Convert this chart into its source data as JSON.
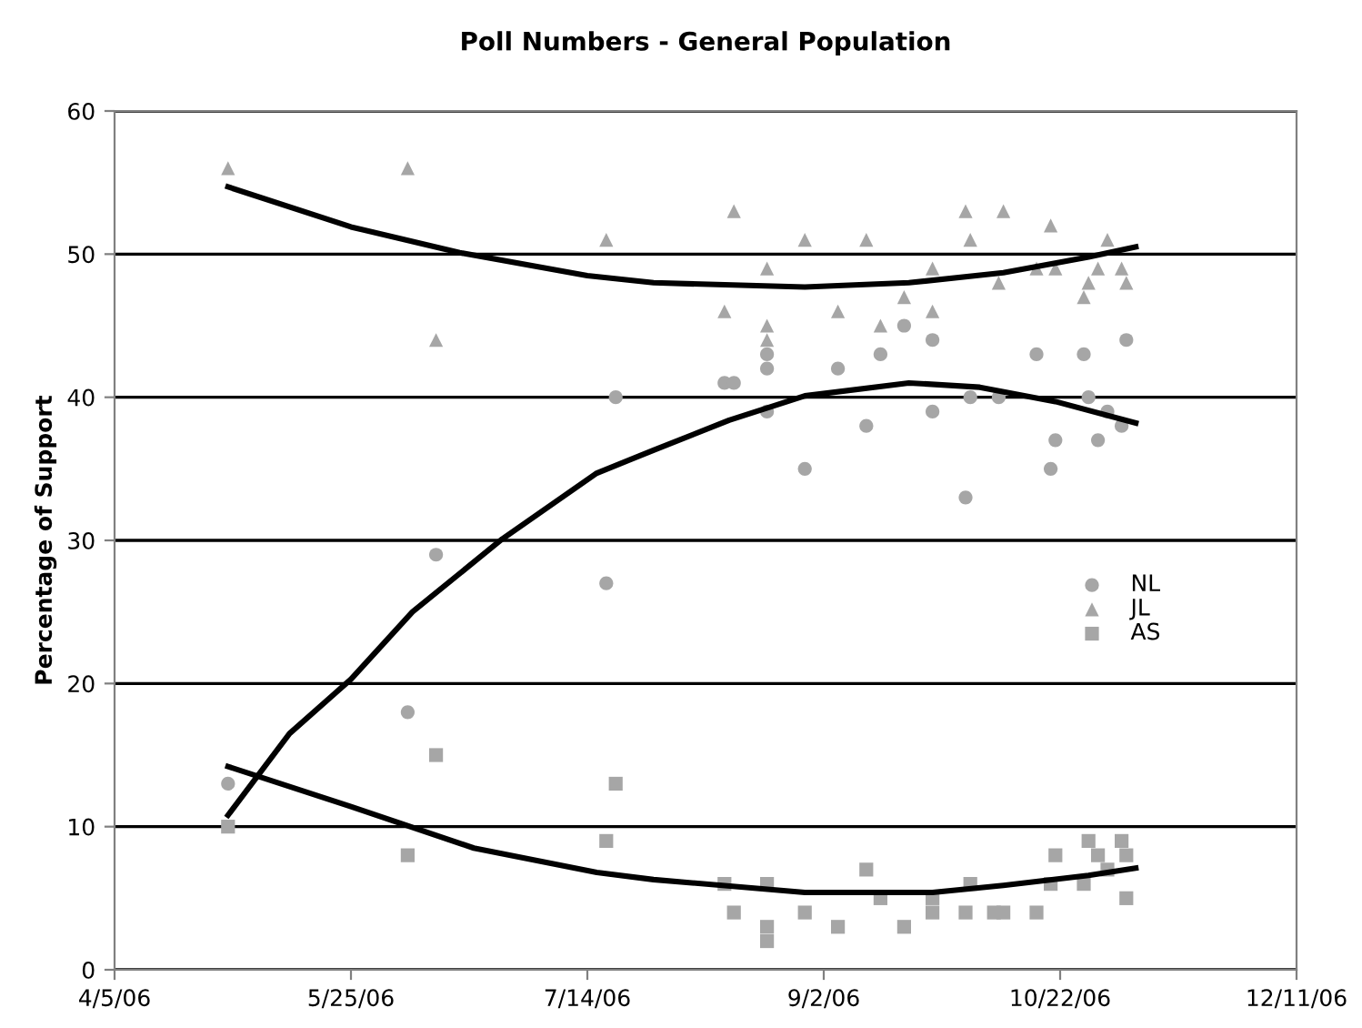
{
  "chart_data": {
    "type": "scatter",
    "title": "Poll Numbers - General Population",
    "ylabel": "Percentage of Support",
    "xlim": [
      "2006-04-05",
      "2006-12-11"
    ],
    "xticks": [
      {
        "value": "2006-04-05",
        "label": "4/5/06"
      },
      {
        "value": "2006-05-25",
        "label": "5/25/06"
      },
      {
        "value": "2006-07-14",
        "label": "7/14/06"
      },
      {
        "value": "2006-09-02",
        "label": "9/2/06"
      },
      {
        "value": "2006-10-22",
        "label": "10/22/06"
      },
      {
        "value": "2006-12-11",
        "label": "12/11/06"
      }
    ],
    "ylim": [
      0,
      60
    ],
    "yticks": [
      0,
      10,
      20,
      30,
      40,
      50,
      60
    ],
    "grid": "y",
    "legend": "right",
    "series": [
      {
        "name": "NL",
        "marker": "circle",
        "color": "#a6a6a6",
        "x": [
          "2006-04-29",
          "2006-06-06",
          "2006-06-12",
          "2006-07-18",
          "2006-07-20",
          "2006-08-12",
          "2006-08-14",
          "2006-08-21",
          "2006-08-21",
          "2006-08-21",
          "2006-08-29",
          "2006-09-05",
          "2006-09-11",
          "2006-09-14",
          "2006-09-19",
          "2006-09-25",
          "2006-09-25",
          "2006-10-02",
          "2006-10-03",
          "2006-10-09",
          "2006-10-17",
          "2006-10-20",
          "2006-10-21",
          "2006-10-27",
          "2006-10-28",
          "2006-10-30",
          "2006-11-01",
          "2006-11-04",
          "2006-11-05"
        ],
        "values": [
          13,
          18,
          29,
          27,
          40,
          41,
          41,
          43,
          42,
          39,
          35,
          42,
          38,
          43,
          45,
          44,
          39,
          33,
          40,
          40,
          43,
          35,
          37,
          43,
          40,
          37,
          39,
          38,
          44
        ]
      },
      {
        "name": "JL",
        "marker": "triangle",
        "color": "#a6a6a6",
        "x": [
          "2006-04-29",
          "2006-06-06",
          "2006-06-12",
          "2006-07-18",
          "2006-08-12",
          "2006-08-14",
          "2006-08-21",
          "2006-08-21",
          "2006-08-21",
          "2006-08-29",
          "2006-09-05",
          "2006-09-11",
          "2006-09-14",
          "2006-09-19",
          "2006-09-25",
          "2006-09-25",
          "2006-10-02",
          "2006-10-03",
          "2006-10-09",
          "2006-10-10",
          "2006-10-17",
          "2006-10-20",
          "2006-10-21",
          "2006-10-27",
          "2006-10-28",
          "2006-10-30",
          "2006-11-01",
          "2006-11-04",
          "2006-11-05"
        ],
        "values": [
          56,
          56,
          44,
          51,
          46,
          53,
          49,
          45,
          44,
          51,
          46,
          51,
          45,
          47,
          49,
          46,
          53,
          51,
          48,
          53,
          49,
          52,
          49,
          47,
          48,
          49,
          51,
          49,
          48
        ]
      },
      {
        "name": "AS",
        "marker": "square",
        "color": "#a6a6a6",
        "x": [
          "2006-04-29",
          "2006-06-06",
          "2006-06-12",
          "2006-07-18",
          "2006-07-20",
          "2006-08-12",
          "2006-08-14",
          "2006-08-21",
          "2006-08-21",
          "2006-08-21",
          "2006-08-29",
          "2006-09-05",
          "2006-09-11",
          "2006-09-14",
          "2006-09-19",
          "2006-09-25",
          "2006-09-25",
          "2006-10-02",
          "2006-10-03",
          "2006-10-08",
          "2006-10-10",
          "2006-10-17",
          "2006-10-20",
          "2006-10-21",
          "2006-10-27",
          "2006-10-28",
          "2006-10-30",
          "2006-11-01",
          "2006-11-04",
          "2006-11-05",
          "2006-11-05"
        ],
        "values": [
          10,
          8,
          15,
          9,
          13,
          6,
          4,
          6,
          3,
          2,
          4,
          3,
          7,
          5,
          3,
          5,
          4,
          4,
          6,
          4,
          4,
          4,
          6,
          8,
          6,
          9,
          8,
          7,
          9,
          8,
          5
        ]
      },
      {
        "type": "line",
        "color": "#000000",
        "x": [
          "2006-04-29",
          "2006-05-25",
          "2006-06-17",
          "2006-07-14",
          "2006-07-28",
          "2006-08-29",
          "2006-09-20",
          "2006-10-10",
          "2006-10-28",
          "2006-11-07"
        ],
        "values": [
          54.7,
          51.9,
          50.1,
          48.5,
          48.0,
          47.7,
          48.0,
          48.7,
          49.8,
          50.5
        ]
      },
      {
        "type": "line",
        "color": "#000000",
        "x": [
          "2006-04-29",
          "2006-05-12",
          "2006-05-25",
          "2006-06-07",
          "2006-06-26",
          "2006-07-16",
          "2006-07-28",
          "2006-08-13",
          "2006-08-29",
          "2006-09-20",
          "2006-10-05",
          "2006-10-21",
          "2006-11-07"
        ],
        "values": [
          10.8,
          16.5,
          20.3,
          25.0,
          30.1,
          34.7,
          36.3,
          38.4,
          40.1,
          41.0,
          40.7,
          39.7,
          38.2
        ]
      },
      {
        "type": "line",
        "color": "#000000",
        "x": [
          "2006-04-29",
          "2006-05-25",
          "2006-06-20",
          "2006-07-16",
          "2006-07-28",
          "2006-08-29",
          "2006-09-25",
          "2006-10-10",
          "2006-10-28",
          "2006-11-07"
        ],
        "values": [
          14.2,
          11.4,
          8.5,
          6.8,
          6.3,
          5.4,
          5.4,
          5.9,
          6.6,
          7.1
        ]
      }
    ]
  }
}
